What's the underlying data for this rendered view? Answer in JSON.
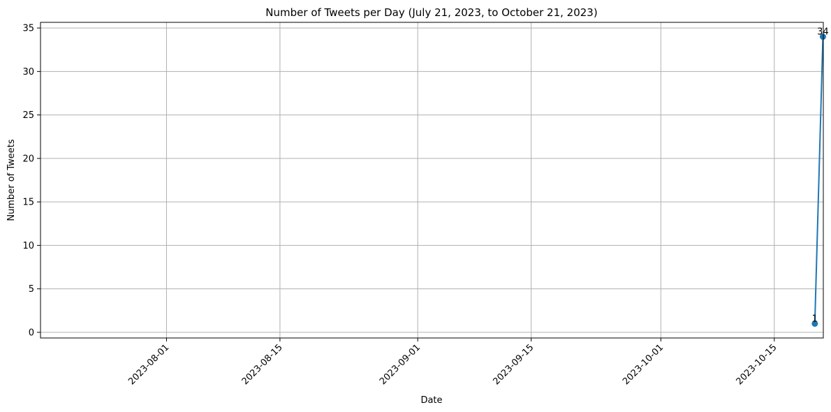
{
  "chart_data": {
    "type": "line",
    "title": "Number of Tweets per Day (July 21, 2023, to October 21, 2023)",
    "xlabel": "Date",
    "ylabel": "Number of Tweets",
    "x_axis_type": "date",
    "xlim": [
      "2023-07-21",
      "2023-10-21"
    ],
    "ylim": [
      -0.65,
      35.65
    ],
    "x_ticks": [
      "2023-08-01",
      "2023-08-15",
      "2023-09-01",
      "2023-09-15",
      "2023-10-01",
      "2023-10-15"
    ],
    "y_ticks": [
      0,
      5,
      10,
      15,
      20,
      25,
      30,
      35
    ],
    "grid": true,
    "series": [
      {
        "color": "#1f77b4",
        "marker": "circle",
        "x": [
          "2023-10-20",
          "2023-10-21"
        ],
        "y": [
          1,
          34
        ],
        "data_labels": [
          "1",
          "34"
        ]
      }
    ]
  }
}
